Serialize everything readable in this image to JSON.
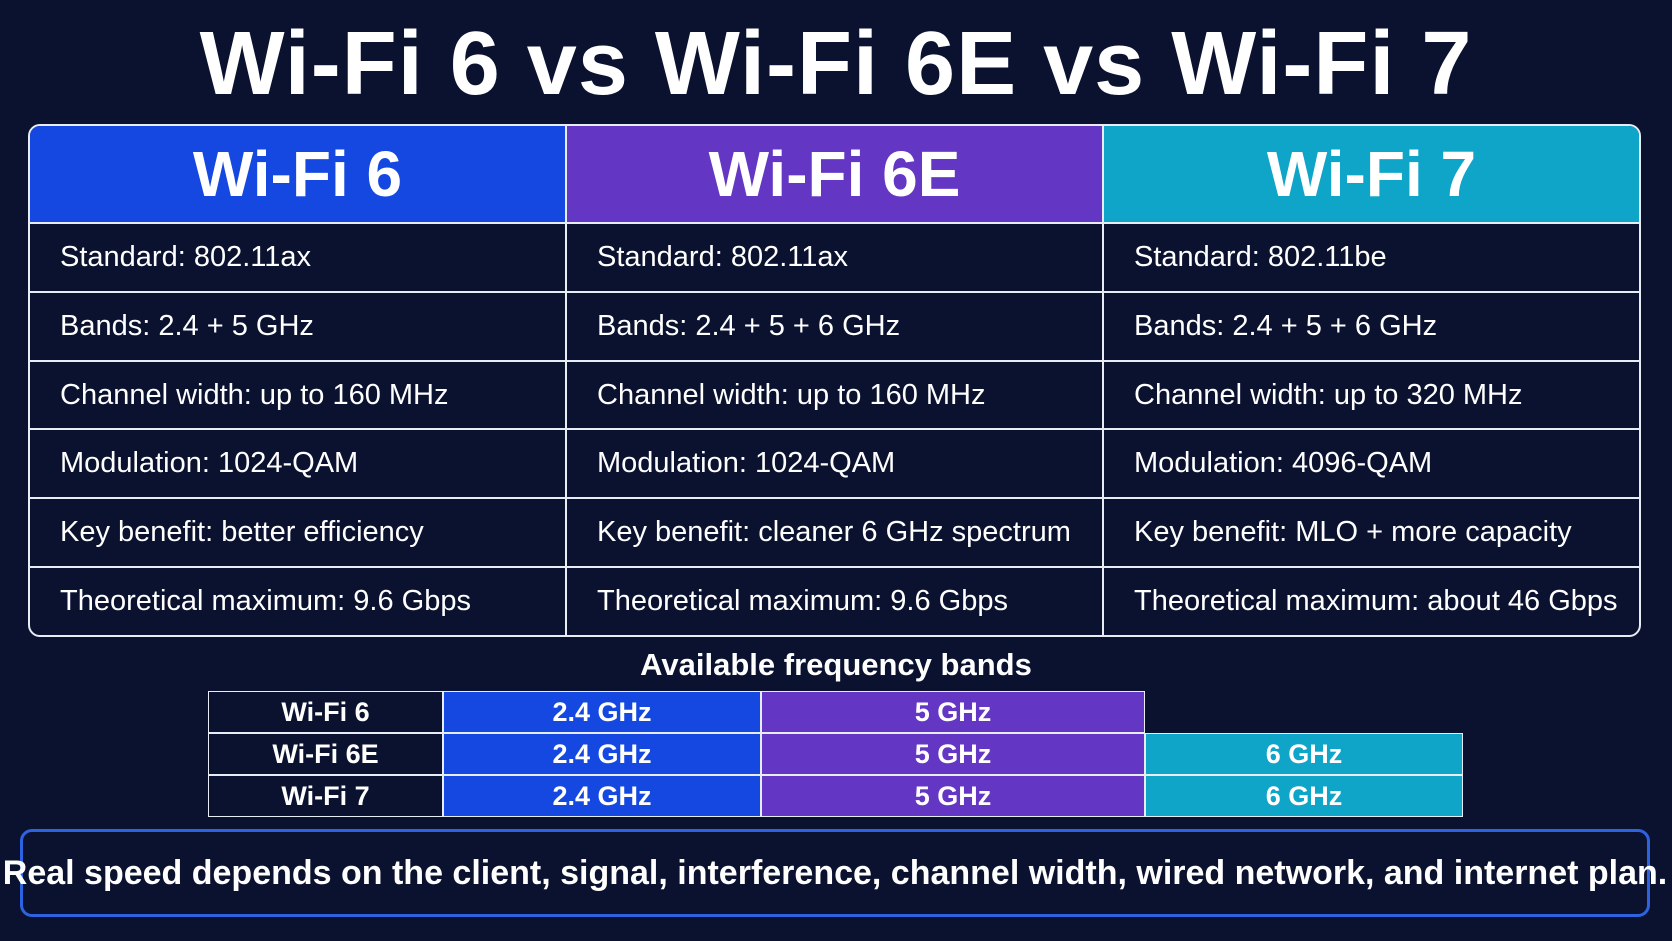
{
  "title": "Wi-Fi 6 vs Wi-Fi 6E vs Wi-Fi 7",
  "colors": {
    "background": "#0b1230",
    "wifi6": "#1448e0",
    "wifi6e": "#6436c4",
    "wifi7": "#0ea5c8",
    "note_border": "#2d63e0"
  },
  "columns": [
    {
      "header": "Wi-Fi 6",
      "rows": [
        "Standard: 802.11ax",
        "Bands: 2.4 + 5 GHz",
        "Channel width: up to 160 MHz",
        "Modulation: 1024-QAM",
        "Key benefit: better efficiency",
        "Theoretical maximum: 9.6 Gbps"
      ]
    },
    {
      "header": "Wi-Fi 6E",
      "rows": [
        "Standard: 802.11ax",
        "Bands: 2.4 + 5 + 6 GHz",
        "Channel width: up to 160 MHz",
        "Modulation: 1024-QAM",
        "Key benefit: cleaner 6 GHz spectrum",
        "Theoretical maximum: 9.6 Gbps"
      ]
    },
    {
      "header": "Wi-Fi 7",
      "rows": [
        "Standard: 802.11be",
        "Bands: 2.4 + 5 + 6 GHz",
        "Channel width: up to 320 MHz",
        "Modulation: 4096-QAM",
        "Key benefit: MLO + more capacity",
        "Theoretical maximum: about 46 Gbps"
      ]
    }
  ],
  "bands": {
    "title": "Available frequency bands",
    "rows": [
      {
        "label": "Wi-Fi 6",
        "b24": "2.4 GHz",
        "b5": "5 GHz",
        "b6": null
      },
      {
        "label": "Wi-Fi 6E",
        "b24": "2.4 GHz",
        "b5": "5 GHz",
        "b6": "6 GHz"
      },
      {
        "label": "Wi-Fi 7",
        "b24": "2.4 GHz",
        "b5": "5 GHz",
        "b6": "6 GHz"
      }
    ]
  },
  "note": "Real speed depends on the client, signal, interference, channel width, wired network, and internet plan."
}
